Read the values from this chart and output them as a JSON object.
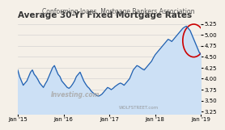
{
  "title": "Average 30-Yr Fixed Mortgage Rates",
  "subtitle": "Conforming loans, Mortgage Bankers Association",
  "xlabel_ticks": [
    "Jan '15",
    "Jan '16",
    "Jan '17",
    "Jan '18",
    "Jan '19"
  ],
  "yticks": [
    3.25,
    3.5,
    3.75,
    4.0,
    4.25,
    4.5,
    4.75,
    5.0,
    5.25
  ],
  "ylim": [
    3.2,
    5.35
  ],
  "line_color": "#2060b0",
  "fill_color": "#cce0f5",
  "background_color": "#f5f0e8",
  "watermark1": "Investing.com",
  "watermark2": "WOLFSTREET.com",
  "circle_color": "#cc0000",
  "title_fontsize": 7.5,
  "subtitle_fontsize": 5.5,
  "tick_fontsize": 5.0,
  "data_x": [
    0,
    1,
    2,
    3,
    4,
    5,
    6,
    7,
    8,
    9,
    10,
    11,
    12,
    13,
    14,
    15,
    16,
    17,
    18,
    19,
    20,
    21,
    22,
    23,
    24,
    25,
    26,
    27,
    28,
    29,
    30,
    31,
    32,
    33,
    34,
    35,
    36,
    37,
    38,
    39,
    40,
    41,
    42,
    43,
    44,
    45,
    46,
    47,
    48,
    49,
    50,
    51,
    52,
    53,
    54,
    55,
    56,
    57,
    58,
    59,
    60,
    61,
    62,
    63,
    64,
    65,
    66,
    67,
    68,
    69,
    70,
    71,
    72,
    73,
    74,
    75,
    76,
    77,
    78,
    79,
    80,
    81,
    82,
    83,
    84,
    85,
    86,
    87,
    88,
    89,
    90,
    91,
    92,
    93,
    94,
    95,
    96,
    97,
    98,
    99,
    100
  ],
  "data_y": [
    4.2,
    4.05,
    3.95,
    3.85,
    3.9,
    3.95,
    4.05,
    4.15,
    4.2,
    4.1,
    4.05,
    3.98,
    3.9,
    3.85,
    3.8,
    3.88,
    3.95,
    4.05,
    4.15,
    4.25,
    4.3,
    4.2,
    4.1,
    4.05,
    3.95,
    3.9,
    3.85,
    3.8,
    3.78,
    3.82,
    3.88,
    3.95,
    4.05,
    4.1,
    4.15,
    4.05,
    3.95,
    3.88,
    3.82,
    3.78,
    3.72,
    3.68,
    3.65,
    3.62,
    3.6,
    3.62,
    3.65,
    3.7,
    3.75,
    3.8,
    3.78,
    3.75,
    3.78,
    3.82,
    3.85,
    3.88,
    3.9,
    3.88,
    3.85,
    3.9,
    3.95,
    4.0,
    4.1,
    4.2,
    4.25,
    4.3,
    4.28,
    4.25,
    4.22,
    4.2,
    4.25,
    4.3,
    4.35,
    4.4,
    4.48,
    4.55,
    4.6,
    4.65,
    4.7,
    4.75,
    4.8,
    4.85,
    4.9,
    4.88,
    4.85,
    4.9,
    4.95,
    5.0,
    5.05,
    5.1,
    5.15,
    5.18,
    5.2,
    5.15,
    5.1,
    5.0,
    4.9,
    4.8,
    4.7,
    4.6,
    4.55
  ]
}
